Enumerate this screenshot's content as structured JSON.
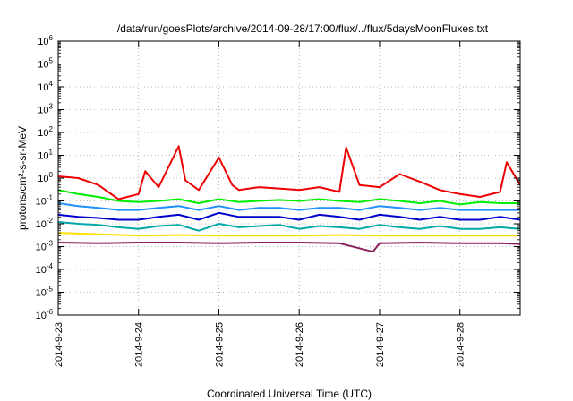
{
  "chart_data": {
    "type": "line",
    "title": "/data/run/goesPlots/archive/2014-09-28/17:00/flux/../flux/5daysMoonFluxes.txt",
    "xlabel": "Coordinated Universal Time (UTC)",
    "ylabel": "protons/cm²-s-sr-MeV",
    "yscale": "log",
    "ylim": [
      1e-06,
      1000000.0
    ],
    "xlim": [
      "2014-09-23",
      "2014-09-28 18:00"
    ],
    "x_tick_labels": [
      "2014-9-23",
      "2014-9-24",
      "2014-9-25",
      "2014-9-26",
      "2014-9-27",
      "2014-9-28"
    ],
    "y_tick_labels": [
      "10-6",
      "10-5",
      "10-4",
      "10-3",
      "10-2",
      "10-1",
      "100",
      "101",
      "102",
      "103",
      "104",
      "105",
      "106"
    ],
    "grid": true,
    "legend": "none",
    "colors": [
      "#ee0000",
      "#00ee00",
      "#1e90ff",
      "#0000cc",
      "#00a8a8",
      "#ffe000",
      "#8b2060"
    ],
    "series": [
      {
        "color": "#ee0000",
        "x": [
          "2014-09-23 00:00",
          "2014-09-23 06:00",
          "2014-09-23 12:00",
          "2014-09-23 18:00",
          "2014-09-24 00:00",
          "2014-09-24 02:00",
          "2014-09-24 06:00",
          "2014-09-24 12:00",
          "2014-09-24 14:00",
          "2014-09-24 18:00",
          "2014-09-25 00:00",
          "2014-09-25 04:00",
          "2014-09-25 06:00",
          "2014-09-25 12:00",
          "2014-09-25 18:00",
          "2014-09-26 00:00",
          "2014-09-26 06:00",
          "2014-09-26 12:00",
          "2014-09-26 14:00",
          "2014-09-26 18:00",
          "2014-09-27 00:00",
          "2014-09-27 06:00",
          "2014-09-27 12:00",
          "2014-09-27 18:00",
          "2014-09-28 00:00",
          "2014-09-28 06:00",
          "2014-09-28 12:00",
          "2014-09-28 14:00",
          "2014-09-28 18:00"
        ],
        "y": [
          1.2,
          1.0,
          0.5,
          0.12,
          0.2,
          2.0,
          0.4,
          25,
          0.8,
          0.3,
          8,
          0.5,
          0.3,
          0.4,
          0.35,
          0.3,
          0.4,
          0.25,
          22,
          0.5,
          0.4,
          1.5,
          0.7,
          0.3,
          0.2,
          0.15,
          0.25,
          5,
          0.5
        ]
      },
      {
        "color": "#00ee00",
        "x": [
          "2014-09-23 00:00",
          "2014-09-23 06:00",
          "2014-09-23 12:00",
          "2014-09-23 18:00",
          "2014-09-24 00:00",
          "2014-09-24 06:00",
          "2014-09-24 12:00",
          "2014-09-24 18:00",
          "2014-09-25 00:00",
          "2014-09-25 06:00",
          "2014-09-25 12:00",
          "2014-09-25 18:00",
          "2014-09-26 00:00",
          "2014-09-26 06:00",
          "2014-09-26 12:00",
          "2014-09-26 18:00",
          "2014-09-27 00:00",
          "2014-09-27 06:00",
          "2014-09-27 12:00",
          "2014-09-27 18:00",
          "2014-09-28 00:00",
          "2014-09-28 06:00",
          "2014-09-28 12:00",
          "2014-09-28 18:00"
        ],
        "y": [
          0.3,
          0.2,
          0.15,
          0.1,
          0.09,
          0.1,
          0.12,
          0.08,
          0.12,
          0.09,
          0.1,
          0.11,
          0.1,
          0.12,
          0.1,
          0.09,
          0.12,
          0.1,
          0.08,
          0.1,
          0.07,
          0.09,
          0.08,
          0.08
        ]
      },
      {
        "color": "#1e90ff",
        "x": [
          "2014-09-23 00:00",
          "2014-09-23 06:00",
          "2014-09-23 12:00",
          "2014-09-23 18:00",
          "2014-09-24 00:00",
          "2014-09-24 06:00",
          "2014-09-24 12:00",
          "2014-09-24 18:00",
          "2014-09-25 00:00",
          "2014-09-25 06:00",
          "2014-09-25 12:00",
          "2014-09-25 18:00",
          "2014-09-26 00:00",
          "2014-09-26 06:00",
          "2014-09-26 12:00",
          "2014-09-26 18:00",
          "2014-09-27 00:00",
          "2014-09-27 06:00",
          "2014-09-27 12:00",
          "2014-09-27 18:00",
          "2014-09-28 00:00",
          "2014-09-28 06:00",
          "2014-09-28 12:00",
          "2014-09-28 18:00"
        ],
        "y": [
          0.08,
          0.06,
          0.05,
          0.04,
          0.04,
          0.05,
          0.06,
          0.04,
          0.06,
          0.04,
          0.05,
          0.05,
          0.04,
          0.05,
          0.05,
          0.04,
          0.06,
          0.05,
          0.04,
          0.05,
          0.04,
          0.04,
          0.04,
          0.04
        ]
      },
      {
        "color": "#0000cc",
        "x": [
          "2014-09-23 00:00",
          "2014-09-23 06:00",
          "2014-09-23 12:00",
          "2014-09-23 18:00",
          "2014-09-24 00:00",
          "2014-09-24 06:00",
          "2014-09-24 12:00",
          "2014-09-24 18:00",
          "2014-09-25 00:00",
          "2014-09-25 06:00",
          "2014-09-25 12:00",
          "2014-09-25 18:00",
          "2014-09-26 00:00",
          "2014-09-26 06:00",
          "2014-09-26 12:00",
          "2014-09-26 18:00",
          "2014-09-27 00:00",
          "2014-09-27 06:00",
          "2014-09-27 12:00",
          "2014-09-27 18:00",
          "2014-09-28 00:00",
          "2014-09-28 06:00",
          "2014-09-28 12:00",
          "2014-09-28 18:00"
        ],
        "y": [
          0.025,
          0.02,
          0.018,
          0.015,
          0.015,
          0.02,
          0.025,
          0.015,
          0.03,
          0.02,
          0.02,
          0.02,
          0.015,
          0.025,
          0.02,
          0.015,
          0.025,
          0.02,
          0.015,
          0.02,
          0.015,
          0.015,
          0.02,
          0.015
        ]
      },
      {
        "color": "#00a8a8",
        "x": [
          "2014-09-23 00:00",
          "2014-09-23 06:00",
          "2014-09-23 12:00",
          "2014-09-23 18:00",
          "2014-09-24 00:00",
          "2014-09-24 06:00",
          "2014-09-24 12:00",
          "2014-09-24 18:00",
          "2014-09-25 00:00",
          "2014-09-25 06:00",
          "2014-09-25 12:00",
          "2014-09-25 18:00",
          "2014-09-26 00:00",
          "2014-09-26 06:00",
          "2014-09-26 12:00",
          "2014-09-26 18:00",
          "2014-09-27 00:00",
          "2014-09-27 06:00",
          "2014-09-27 12:00",
          "2014-09-27 18:00",
          "2014-09-28 00:00",
          "2014-09-28 06:00",
          "2014-09-28 12:00",
          "2014-09-28 18:00"
        ],
        "y": [
          0.012,
          0.01,
          0.009,
          0.007,
          0.006,
          0.008,
          0.009,
          0.005,
          0.01,
          0.007,
          0.008,
          0.009,
          0.006,
          0.008,
          0.007,
          0.006,
          0.009,
          0.007,
          0.006,
          0.008,
          0.006,
          0.006,
          0.007,
          0.006
        ]
      },
      {
        "color": "#ffe000",
        "x": [
          "2014-09-23 00:00",
          "2014-09-23 12:00",
          "2014-09-24 00:00",
          "2014-09-24 12:00",
          "2014-09-25 00:00",
          "2014-09-25 12:00",
          "2014-09-26 00:00",
          "2014-09-26 12:00",
          "2014-09-27 00:00",
          "2014-09-27 12:00",
          "2014-09-28 00:00",
          "2014-09-28 12:00",
          "2014-09-28 18:00"
        ],
        "y": [
          0.004,
          0.0035,
          0.003,
          0.0032,
          0.003,
          0.003,
          0.003,
          0.0032,
          0.003,
          0.003,
          0.003,
          0.003,
          0.003
        ]
      },
      {
        "color": "#8b2060",
        "x": [
          "2014-09-23 00:00",
          "2014-09-23 12:00",
          "2014-09-24 00:00",
          "2014-09-24 12:00",
          "2014-09-25 00:00",
          "2014-09-25 12:00",
          "2014-09-26 00:00",
          "2014-09-26 12:00",
          "2014-09-26 22:00",
          "2014-09-27 00:00",
          "2014-09-27 12:00",
          "2014-09-28 00:00",
          "2014-09-28 12:00",
          "2014-09-28 18:00"
        ],
        "y": [
          0.0015,
          0.0014,
          0.0015,
          0.0015,
          0.0014,
          0.0015,
          0.0015,
          0.0014,
          0.0006,
          0.0014,
          0.0015,
          0.0014,
          0.0014,
          0.0013
        ]
      }
    ]
  }
}
